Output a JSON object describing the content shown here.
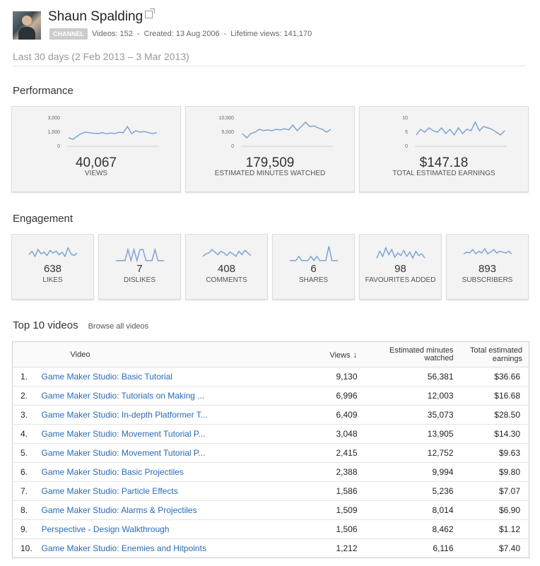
{
  "channel": {
    "name": "Shaun Spalding",
    "badge": "CHANNEL",
    "videos": "Videos: 152",
    "created": "Created: 13 Aug 2006",
    "lifetime_views": "Lifetime views: 141,170",
    "sep": "-"
  },
  "date_range": "Last 30 days (2 Feb 2013 – 3 Mar 2013)",
  "performance": {
    "title": "Performance",
    "cards": [
      {
        "value": "40,067",
        "label": "VIEWS",
        "ticks": [
          "3,000",
          "1,500",
          "0"
        ],
        "spark": [
          0.3,
          0.25,
          0.35,
          0.45,
          0.5,
          0.48,
          0.46,
          0.45,
          0.48,
          0.44,
          0.47,
          0.45,
          0.5,
          0.48,
          0.7,
          0.45,
          0.55,
          0.5,
          0.52,
          0.48,
          0.45,
          0.48
        ]
      },
      {
        "value": "179,509",
        "label": "ESTIMATED MINUTES WATCHED",
        "ticks": [
          "10,000",
          "5,000",
          "0"
        ],
        "spark": [
          0.45,
          0.3,
          0.45,
          0.5,
          0.6,
          0.55,
          0.58,
          0.55,
          0.6,
          0.58,
          0.62,
          0.58,
          0.75,
          0.55,
          0.7,
          0.85,
          0.7,
          0.72,
          0.65,
          0.6,
          0.5,
          0.6
        ]
      },
      {
        "value": "$147.18",
        "label": "TOTAL ESTIMATED EARNINGS",
        "ticks": [
          "10",
          "5",
          "0"
        ],
        "spark": [
          0.4,
          0.6,
          0.5,
          0.65,
          0.55,
          0.5,
          0.65,
          0.45,
          0.6,
          0.4,
          0.65,
          0.45,
          0.6,
          0.55,
          0.85,
          0.55,
          0.7,
          0.65,
          0.6,
          0.5,
          0.4,
          0.55
        ]
      }
    ]
  },
  "engagement": {
    "title": "Engagement",
    "cards": [
      {
        "value": "638",
        "label": "LIKES",
        "spark": [
          0.4,
          0.6,
          0.3,
          0.7,
          0.45,
          0.55,
          0.35,
          0.65,
          0.5,
          0.6,
          0.4,
          0.55,
          0.3,
          0.8,
          0.45,
          0.35,
          0.5
        ]
      },
      {
        "value": "7",
        "label": "DISLIKES",
        "spark": [
          0.05,
          0.05,
          0.05,
          0.05,
          0.7,
          0.05,
          0.7,
          0.05,
          0.7,
          0.7,
          0.05,
          0.05,
          0.05,
          0.7,
          0.05,
          0.05,
          0.05
        ]
      },
      {
        "value": "408",
        "label": "COMMENTS",
        "spark": [
          0.3,
          0.45,
          0.5,
          0.7,
          0.55,
          0.4,
          0.6,
          0.5,
          0.35,
          0.55,
          0.45,
          0.3,
          0.6,
          0.4,
          0.65,
          0.5,
          0.35
        ]
      },
      {
        "value": "6",
        "label": "SHARES",
        "spark": [
          0.05,
          0.05,
          0.05,
          0.3,
          0.05,
          0.05,
          0.05,
          0.3,
          0.05,
          0.3,
          0.05,
          0.05,
          0.05,
          0.9,
          0.05,
          0.05,
          0.05
        ]
      },
      {
        "value": "98",
        "label": "FAVOURITES ADDED",
        "spark": [
          0.2,
          0.6,
          0.3,
          0.8,
          0.4,
          0.7,
          0.25,
          0.5,
          0.35,
          0.65,
          0.3,
          0.55,
          0.2,
          0.6,
          0.35,
          0.45,
          0.2
        ]
      },
      {
        "value": "893",
        "label": "SUBSCRIBERS",
        "spark": [
          0.45,
          0.55,
          0.5,
          0.7,
          0.45,
          0.6,
          0.5,
          0.75,
          0.45,
          0.55,
          0.7,
          0.5,
          0.6,
          0.55,
          0.5,
          0.6,
          0.45
        ]
      }
    ]
  },
  "top_videos": {
    "title": "Top 10 videos",
    "browse_label": "Browse all videos",
    "columns": {
      "video": "Video",
      "views": "Views",
      "minutes": "Estimated minutes watched",
      "earnings": "Total estimated earnings"
    },
    "rows": [
      {
        "rank": "1.",
        "title": "Game Maker Studio: Basic Tutorial",
        "views": "9,130",
        "minutes": "56,381",
        "earnings": "$36.66"
      },
      {
        "rank": "2.",
        "title": "Game Maker Studio: Tutorials on Making ...",
        "views": "6,996",
        "minutes": "12,003",
        "earnings": "$16.68"
      },
      {
        "rank": "3.",
        "title": "Game Maker Studio: In-depth Platformer T...",
        "views": "6,409",
        "minutes": "35,073",
        "earnings": "$28.50"
      },
      {
        "rank": "4.",
        "title": "Game Maker Studio: Movement Tutorial P...",
        "views": "3,048",
        "minutes": "13,905",
        "earnings": "$14.30"
      },
      {
        "rank": "5.",
        "title": "Game Maker Studio: Movement Tutorial P...",
        "views": "2,415",
        "minutes": "12,752",
        "earnings": "$9.63"
      },
      {
        "rank": "6.",
        "title": "Game Maker Studio: Basic Projectiles",
        "views": "2,388",
        "minutes": "9,994",
        "earnings": "$9.80"
      },
      {
        "rank": "7.",
        "title": "Game Maker Studio: Particle Effects",
        "views": "1,586",
        "minutes": "5,236",
        "earnings": "$7.07"
      },
      {
        "rank": "8.",
        "title": "Game Maker Studio: Alarms & Projectiles",
        "views": "1,509",
        "minutes": "8,014",
        "earnings": "$6.90"
      },
      {
        "rank": "9.",
        "title": "Perspective - Design Walkthrough",
        "views": "1,506",
        "minutes": "8,462",
        "earnings": "$1.12"
      },
      {
        "rank": "10.",
        "title": "Game Maker Studio: Enemies and Hitpoints",
        "views": "1,212",
        "minutes": "6,116",
        "earnings": "$7.40"
      }
    ]
  },
  "colors": {
    "link": "#2a6ab5",
    "spark": "#7ea3d4"
  }
}
